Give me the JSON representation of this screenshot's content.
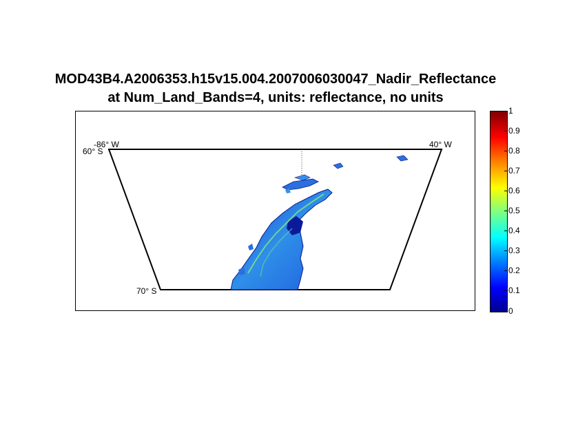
{
  "title": {
    "line1": "MOD43B4.A2006353.h15v15.004.2007006030047_Nadir_Reflectance",
    "line2": "at Num_Land_Bands=4, units: reflectance, no units"
  },
  "map": {
    "labels": {
      "top_left_lon": "-86° W",
      "top_left_lat": "60° S",
      "top_right_lon": "40° W",
      "bottom_left_lat": "70° S"
    }
  },
  "colorbar": {
    "ticks": [
      "1",
      "0.9",
      "0.8",
      "0.7",
      "0.6",
      "0.5",
      "0.4",
      "0.3",
      "0.2",
      "0.1",
      "0"
    ],
    "colormap": "jet",
    "range": [
      0,
      1
    ]
  },
  "colors": {
    "low": "#00008f",
    "mid": "#80ff80",
    "high": "#800000",
    "land_main": "#2b6fe0"
  }
}
